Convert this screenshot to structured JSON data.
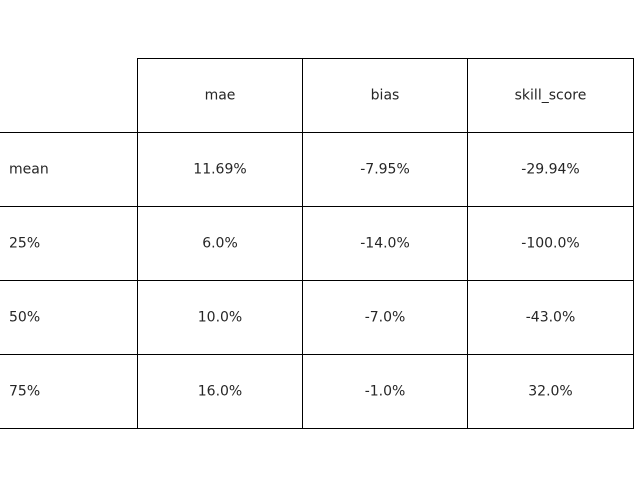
{
  "chart_data": {
    "type": "table",
    "col_labels": [
      "mae",
      "bias",
      "skill_score"
    ],
    "row_labels": [
      "mean",
      "25%",
      "50%",
      "75%"
    ],
    "cells": [
      [
        "11.69%",
        "-7.95%",
        "-29.94%"
      ],
      [
        "6.0%",
        "-14.0%",
        "-100.0%"
      ],
      [
        "10.0%",
        "-7.0%",
        "-43.0%"
      ],
      [
        "16.0%",
        "-1.0%",
        "32.0%"
      ]
    ]
  }
}
